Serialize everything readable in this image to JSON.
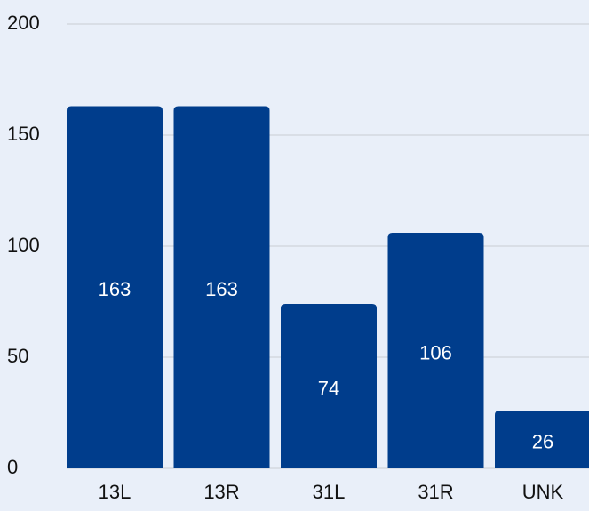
{
  "chart_data": {
    "type": "bar",
    "categories": [
      "13L",
      "13R",
      "31L",
      "31R",
      "UNK"
    ],
    "values": [
      163,
      163,
      74,
      106,
      26
    ],
    "color": "#003d8c",
    "ylim": [
      0,
      200
    ],
    "yticks": [
      0,
      50,
      100,
      150,
      200
    ],
    "grid": true
  }
}
